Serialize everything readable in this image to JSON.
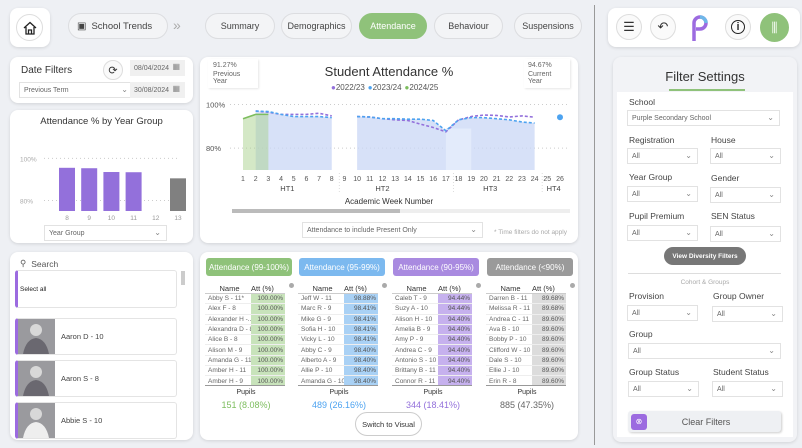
{
  "nav": {
    "breadcrumb": "School Trends",
    "tabs": [
      {
        "label": "Summary"
      },
      {
        "label": "Demographics"
      },
      {
        "label": "Attendance",
        "active": true
      },
      {
        "label": "Behaviour"
      },
      {
        "label": "Suspensions"
      }
    ],
    "accent": "#8fc27a"
  },
  "date_filters": {
    "title": "Date Filters",
    "period": "Previous Term",
    "start": "08/04/2024",
    "end": "30/08/2024"
  },
  "year_chart": {
    "chart_data": {
      "type": "bar",
      "title": "Attendance % by Year Group",
      "categories": [
        "8",
        "9",
        "10",
        "11",
        "12",
        "13"
      ],
      "values": [
        95.5,
        95.3,
        93.5,
        93.4,
        null,
        90.5
      ],
      "colors": [
        "#9370db",
        "#9370db",
        "#9370db",
        "#9370db",
        "#9370db",
        "#808080"
      ],
      "yticks": [
        "100%",
        "80%"
      ],
      "ylim": [
        75,
        103
      ]
    },
    "dropdown": "Year Group"
  },
  "students": {
    "search_placeholder": "Search",
    "select_all": "Select all",
    "items": [
      {
        "name": "Aaron D - 10"
      },
      {
        "name": "Aaron S - 8"
      },
      {
        "name": "Abbie S - 10"
      }
    ]
  },
  "attendance_chart": {
    "prev_value": "91.27%",
    "prev_label": "Previous Year",
    "cur_value": "94.67%",
    "cur_label": "Current Year",
    "chart_data": {
      "type": "line",
      "title": "Student Attendance %",
      "xlabel": "Academic Week Number",
      "yticks": [
        "100%",
        "80%"
      ],
      "ylim": [
        70,
        103
      ],
      "weeks": [
        "1",
        "2",
        "3",
        "4",
        "5",
        "6",
        "7",
        "8",
        "9",
        "10",
        "11",
        "12",
        "13",
        "14",
        "15",
        "16",
        "17",
        "18",
        "19",
        "20",
        "21",
        "22",
        "23",
        "24",
        "25",
        "26"
      ],
      "terms": [
        "HT1",
        "HT2",
        "HT3",
        "HT4"
      ],
      "series": [
        {
          "name": "2022/23",
          "color": "#9370db",
          "points": [
            [
              2,
              97
            ],
            [
              3,
              96.5
            ],
            [
              4,
              95.5
            ],
            [
              5,
              95.5
            ],
            [
              6,
              95.5
            ],
            [
              7,
              96
            ],
            [
              8,
              94.8
            ],
            [
              10,
              94.5
            ],
            [
              11,
              94.3
            ],
            [
              12,
              93.5
            ],
            [
              13,
              93
            ],
            [
              14,
              92.7
            ],
            [
              15,
              91
            ],
            [
              16,
              89.5
            ],
            [
              17,
              87.5
            ],
            [
              18,
              93
            ],
            [
              19,
              94.5
            ],
            [
              20,
              95.2
            ],
            [
              21,
              95
            ],
            [
              22,
              94.3
            ],
            [
              23,
              94.8
            ],
            [
              24,
              94.2
            ]
          ]
        },
        {
          "name": "2023/24",
          "color": "#4da3f0",
          "points": [
            [
              2,
              97
            ],
            [
              3,
              96.8
            ],
            [
              4,
              95.5
            ],
            [
              5,
              94.5
            ],
            [
              6,
              94.5
            ],
            [
              7,
              94.5
            ],
            [
              8,
              94
            ],
            [
              10,
              94.5
            ],
            [
              11,
              94.3
            ],
            [
              12,
              93.5
            ],
            [
              13,
              93.5
            ],
            [
              14,
              93.3
            ],
            [
              15,
              93.3
            ],
            [
              16,
              92.7
            ],
            [
              17,
              88
            ],
            [
              18,
              93
            ],
            [
              19,
              94
            ],
            [
              20,
              94
            ],
            [
              21,
              93.5
            ],
            [
              22,
              93
            ],
            [
              23,
              92
            ],
            [
              24,
              91.5
            ],
            [
              26,
              94.2
            ]
          ]
        },
        {
          "name": "2024/25",
          "color": "#7dbd5e",
          "points": [
            [
              1,
              93.5
            ],
            [
              2,
              95.5
            ],
            [
              3,
              95.5
            ]
          ]
        }
      ]
    },
    "dropdown": "Attendance to include Present Only",
    "note": "* Time filters do not apply"
  },
  "bands": [
    {
      "label": "Attendance (99-100%)",
      "color": "#8fc27a",
      "cell": "#c8e3bb",
      "count_color": "#7dbd5e",
      "pupils": "Pupils",
      "count": "151 (8.08%)",
      "col_name": "Name",
      "col_att": "Att (%)",
      "rows": [
        [
          "Abby S - 11*",
          "100.00%"
        ],
        [
          "Alex F - 8",
          "100.00%"
        ],
        [
          "Alexander H -...",
          "100.00%"
        ],
        [
          "Alexandra D - 8",
          "100.00%"
        ],
        [
          "Alice B - 8",
          "100.00%"
        ],
        [
          "Alison M - 9",
          "100.00%"
        ],
        [
          "Amanda G - 11",
          "100.00%"
        ],
        [
          "Amber H - 11",
          "100.00%"
        ],
        [
          "Amber H - 9",
          "100.00%"
        ]
      ]
    },
    {
      "label": "Attendance (95-99%)",
      "color": "#7cb9ef",
      "cell": "#a9d1f5",
      "count_color": "#4da3f0",
      "pupils": "Pupils",
      "count": "489 (26.16%)",
      "col_name": "Name",
      "col_att": "Att (%)",
      "rows": [
        [
          "Jeff W - 11",
          "98.88%"
        ],
        [
          "Marc R - 9",
          "98.41%"
        ],
        [
          "Mike G - 9",
          "98.41%"
        ],
        [
          "Sofia H - 10",
          "98.41%"
        ],
        [
          "Vicky L - 10",
          "98.41%"
        ],
        [
          "Abby C - 9",
          "98.40%"
        ],
        [
          "Alberto A - 9",
          "98.40%"
        ],
        [
          "Allie P - 10",
          "98.40%"
        ],
        [
          "Amanda G - 10",
          "98.40%"
        ]
      ]
    },
    {
      "label": "Attendance (90-95%)",
      "color": "#a98ae0",
      "cell": "#c6b1ee",
      "count_color": "#9370db",
      "pupils": "Pupils",
      "count": "344 (18.41%)",
      "col_name": "Name",
      "col_att": "Att (%)",
      "rows": [
        [
          "Caleb T - 9",
          "94.44%"
        ],
        [
          "Suzy A - 10",
          "94.44%"
        ],
        [
          "Alison H - 10",
          "94.40%"
        ],
        [
          "Amelia B - 9",
          "94.40%"
        ],
        [
          "Amy P - 9",
          "94.40%"
        ],
        [
          "Andrea C - 9",
          "94.40%"
        ],
        [
          "Antonio S - 10",
          "94.40%"
        ],
        [
          "Brittany B - 11",
          "94.40%"
        ],
        [
          "Connor R - 11",
          "94.40%"
        ]
      ]
    },
    {
      "label": "Attendance (<90%)",
      "color": "#9a9a9a",
      "cell": "#dcdcdc",
      "count_color": "#666666",
      "pupils": "Pupils",
      "count": "885 (47.35%)",
      "col_name": "Name",
      "col_att": "Att (%)",
      "rows": [
        [
          "Darren B - 11",
          "89.68%"
        ],
        [
          "Melissa R - 11",
          "89.68%"
        ],
        [
          "Andrea C - 11",
          "89.60%"
        ],
        [
          "Ava B - 10",
          "89.60%"
        ],
        [
          "Bobby P - 10",
          "89.60%"
        ],
        [
          "Clifford W - 10",
          "89.60%"
        ],
        [
          "Dale S - 10",
          "89.60%"
        ],
        [
          "Ellie J - 10",
          "89.60%"
        ],
        [
          "Erin R - 8",
          "89.60%"
        ]
      ]
    }
  ],
  "switch_label": "Switch to Visual",
  "filters": {
    "title": "Filter Settings",
    "school_label": "School",
    "school": "Purple Secondary School",
    "registration_label": "Registration",
    "registration": "All",
    "house_label": "House",
    "house": "All",
    "year_label": "Year Group",
    "year": "All",
    "gender_label": "Gender",
    "gender": "All",
    "pp_label": "Pupil Premium",
    "pp": "All",
    "sen_label": "SEN Status",
    "sen": "All",
    "diversity_btn": "View Diversity Filters",
    "cohort_heading": "Cohort & Groups",
    "provision_label": "Provision",
    "provision": "All",
    "owner_label": "Group Owner",
    "owner": "All",
    "group_label": "Group",
    "group": "All",
    "gstatus_label": "Group Status",
    "gstatus": "All",
    "sstatus_label": "Student Status",
    "sstatus": "All",
    "clear_btn": "Clear Filters"
  }
}
